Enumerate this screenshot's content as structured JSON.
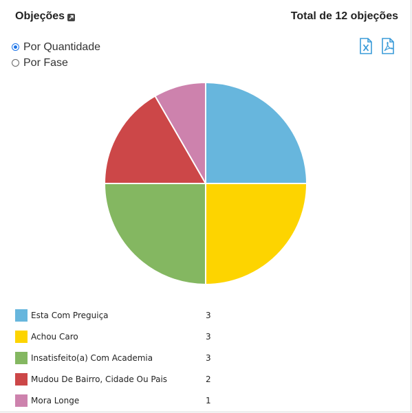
{
  "header": {
    "title": "Objeções",
    "total": "Total de 12 objeções"
  },
  "options": [
    {
      "label": "Por Quantidade",
      "checked": true
    },
    {
      "label": "Por Fase",
      "checked": false
    }
  ],
  "export": {
    "excel_icon": "excel-export-icon",
    "pdf_icon": "pdf-export-icon",
    "color": "#3a9bd9"
  },
  "chart_data": {
    "type": "pie",
    "categories": [
      "Esta Com Preguiça",
      "Achou Caro",
      "Insatisfeito(a) Com Academia",
      "Mudou De Bairro, Cidade Ou Pais",
      "Mora Longe"
    ],
    "values": [
      3,
      3,
      3,
      2,
      1
    ],
    "colors": [
      "#67b6dd",
      "#fdd400",
      "#84b761",
      "#cc4748",
      "#cd82ad"
    ],
    "title": "",
    "legend": "bottom-left"
  }
}
